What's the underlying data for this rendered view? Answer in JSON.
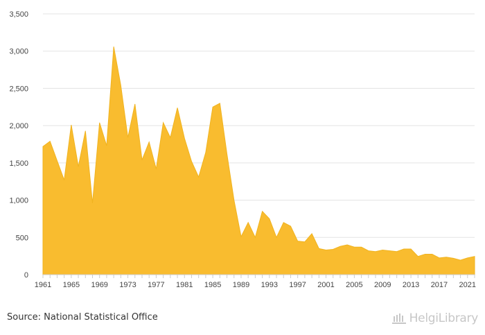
{
  "chart_data": {
    "type": "area",
    "title": "",
    "xlabel": "",
    "ylabel": "",
    "x": [
      1961,
      1962,
      1963,
      1964,
      1965,
      1966,
      1967,
      1968,
      1969,
      1970,
      1971,
      1972,
      1973,
      1974,
      1975,
      1976,
      1977,
      1978,
      1979,
      1980,
      1981,
      1982,
      1983,
      1984,
      1985,
      1986,
      1987,
      1988,
      1989,
      1990,
      1991,
      1992,
      1993,
      1994,
      1995,
      1996,
      1997,
      1998,
      1999,
      2000,
      2001,
      2002,
      2003,
      2004,
      2005,
      2006,
      2007,
      2008,
      2009,
      2010,
      2011,
      2012,
      2013,
      2014,
      2015,
      2016,
      2017,
      2018,
      2019,
      2020,
      2021,
      2022
    ],
    "values": [
      1720,
      1790,
      1530,
      1270,
      2010,
      1450,
      1930,
      960,
      2040,
      1730,
      3060,
      2540,
      1840,
      2290,
      1540,
      1780,
      1420,
      2040,
      1840,
      2240,
      1830,
      1520,
      1310,
      1640,
      2250,
      2300,
      1620,
      1000,
      510,
      700,
      500,
      850,
      750,
      500,
      700,
      650,
      450,
      440,
      550,
      350,
      330,
      340,
      380,
      400,
      370,
      370,
      320,
      310,
      330,
      320,
      310,
      345,
      345,
      245,
      275,
      275,
      225,
      235,
      220,
      195,
      225,
      245
    ],
    "ylim": [
      0,
      3500
    ],
    "yticks": [
      0,
      500,
      1000,
      1500,
      2000,
      2500,
      3000,
      3500
    ],
    "ytick_labels": [
      "0",
      "500",
      "1,000",
      "1,500",
      "2,000",
      "2,500",
      "3,000",
      "3,500"
    ],
    "xticks": [
      1961,
      1965,
      1969,
      1973,
      1977,
      1981,
      1985,
      1989,
      1993,
      1997,
      2001,
      2005,
      2009,
      2013,
      2017,
      2021
    ],
    "grid": true,
    "colors": {
      "fill": "#f9bc2f",
      "stroke": "#f0b31f",
      "grid": "#e3e3e3",
      "axis": "#cccccc"
    }
  },
  "footer": {
    "source": "Source: National Statistical Office",
    "brand": "HelgiLibrary"
  },
  "icons": {
    "brand_logo": "library-columns-icon"
  }
}
